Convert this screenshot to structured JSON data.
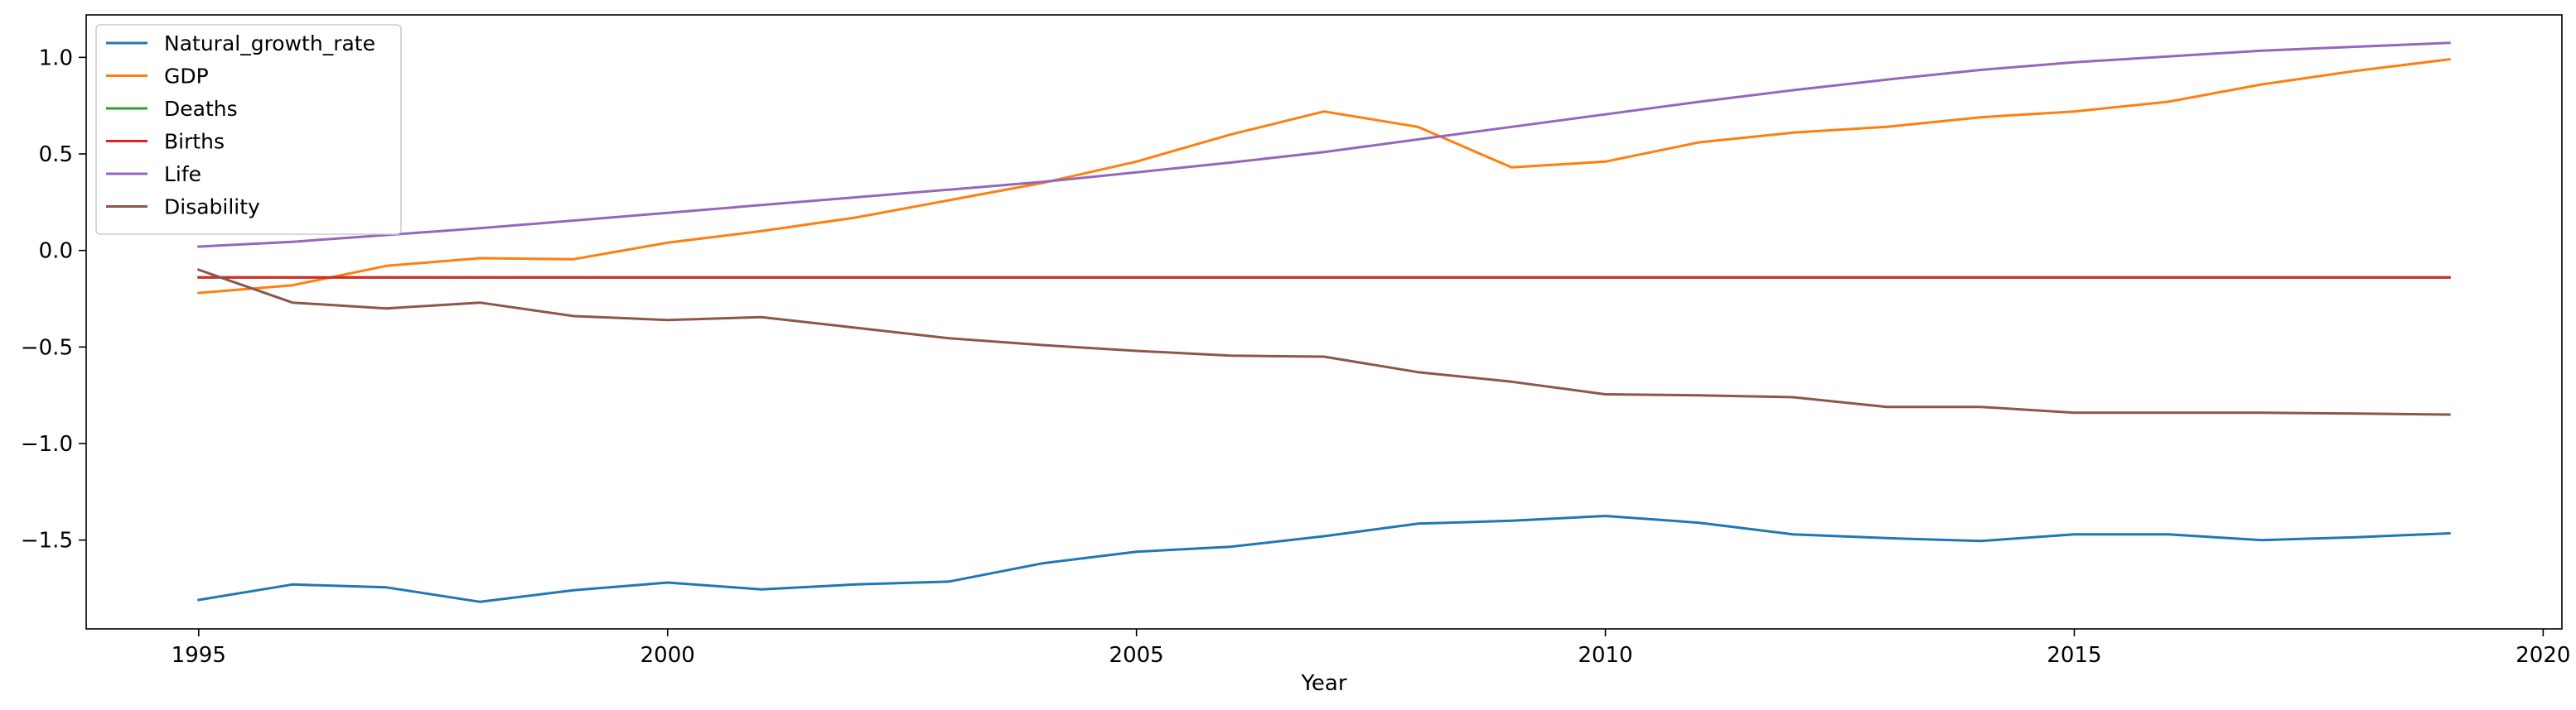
{
  "chart_data": {
    "type": "line",
    "title": "",
    "xlabel": "Year",
    "ylabel": "",
    "xlim": [
      1993.8,
      2020.2
    ],
    "ylim": [
      -1.96,
      1.22
    ],
    "xticks": [
      1995,
      2000,
      2005,
      2010,
      2015,
      2020
    ],
    "yticks": [
      -1.5,
      -1.0,
      -0.5,
      0.0,
      0.5,
      1.0
    ],
    "ytick_labels": [
      "−1.5",
      "−1.0",
      "−0.5",
      "0.0",
      "0.5",
      "1.0"
    ],
    "grid": false,
    "legend_position": "upper-left",
    "x": [
      1995,
      1996,
      1997,
      1998,
      1999,
      2000,
      2001,
      2002,
      2003,
      2004,
      2005,
      2006,
      2007,
      2008,
      2009,
      2010,
      2011,
      2012,
      2013,
      2014,
      2015,
      2016,
      2017,
      2018,
      2019
    ],
    "series": [
      {
        "name": "Natural_growth_rate",
        "color": "#1f77b4",
        "values": [
          -1.81,
          -1.73,
          -1.745,
          -1.82,
          -1.76,
          -1.72,
          -1.755,
          -1.73,
          -1.715,
          -1.62,
          -1.56,
          -1.535,
          -1.48,
          -1.415,
          -1.4,
          -1.375,
          -1.41,
          -1.47,
          -1.49,
          -1.505,
          -1.47,
          -1.47,
          -1.5,
          -1.485,
          -1.465
        ]
      },
      {
        "name": "GDP",
        "color": "#ff7f0e",
        "values": [
          -0.22,
          -0.18,
          -0.08,
          -0.04,
          -0.045,
          0.04,
          0.1,
          0.17,
          0.26,
          0.35,
          0.46,
          0.6,
          0.72,
          0.64,
          0.43,
          0.46,
          0.56,
          0.61,
          0.64,
          0.69,
          0.72,
          0.77,
          0.86,
          0.93,
          0.99
        ]
      },
      {
        "name": "Deaths",
        "color": "#2ca02c",
        "values": [
          -0.14,
          -0.14,
          -0.14,
          -0.14,
          -0.14,
          -0.14,
          -0.14,
          -0.14,
          -0.14,
          -0.14,
          -0.14,
          -0.14,
          -0.14,
          -0.14,
          -0.14,
          -0.14,
          -0.14,
          -0.14,
          -0.14,
          -0.14,
          -0.14,
          -0.14,
          -0.14,
          -0.14,
          -0.14
        ]
      },
      {
        "name": "Births",
        "color": "#d62728",
        "values": [
          -0.14,
          -0.14,
          -0.14,
          -0.14,
          -0.14,
          -0.14,
          -0.14,
          -0.14,
          -0.14,
          -0.14,
          -0.14,
          -0.14,
          -0.14,
          -0.14,
          -0.14,
          -0.14,
          -0.14,
          -0.14,
          -0.14,
          -0.14,
          -0.14,
          -0.14,
          -0.14,
          -0.14,
          -0.14
        ]
      },
      {
        "name": "Life",
        "color": "#9467bd",
        "values": [
          0.02,
          0.045,
          0.08,
          0.115,
          0.155,
          0.195,
          0.235,
          0.275,
          0.315,
          0.355,
          0.405,
          0.455,
          0.51,
          0.575,
          0.64,
          0.705,
          0.77,
          0.83,
          0.885,
          0.935,
          0.975,
          1.005,
          1.035,
          1.055,
          1.075
        ]
      },
      {
        "name": "Disability",
        "color": "#8c564b",
        "values": [
          -0.1,
          -0.27,
          -0.3,
          -0.27,
          -0.34,
          -0.36,
          -0.345,
          -0.4,
          -0.455,
          -0.49,
          -0.52,
          -0.545,
          -0.55,
          -0.63,
          -0.68,
          -0.745,
          -0.75,
          -0.76,
          -0.81,
          -0.81,
          -0.84,
          -0.84,
          -0.84,
          -0.845,
          -0.85
        ]
      }
    ]
  }
}
